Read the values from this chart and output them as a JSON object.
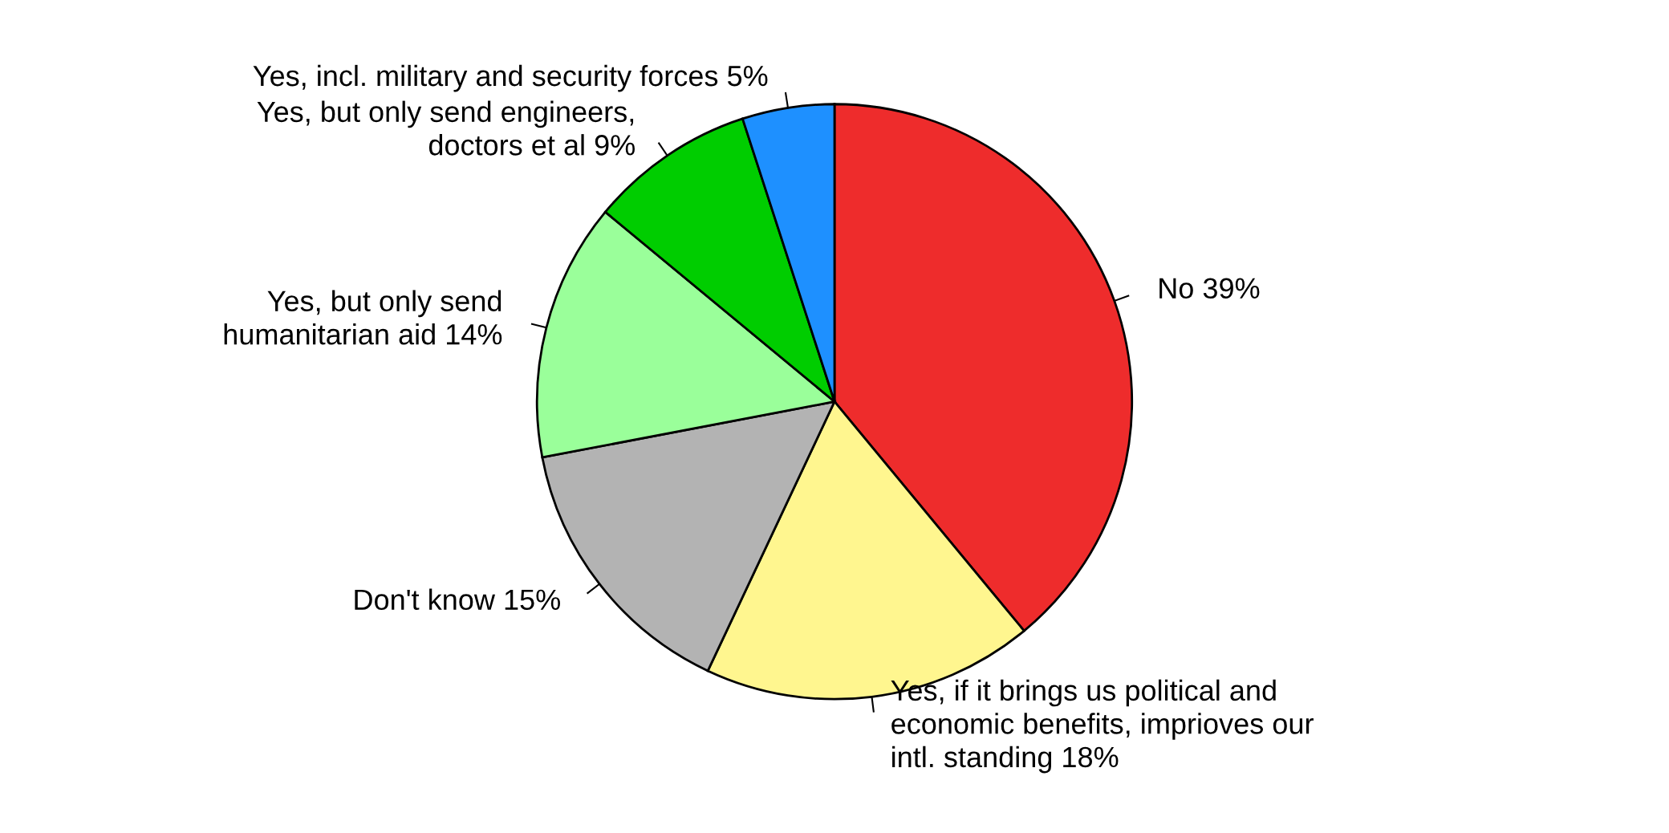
{
  "chart_data": {
    "type": "pie",
    "categories": [
      "No 39%",
      "Yes, if it brings us political and\neconomic benefits, imprioves our\nintl. standing 18%",
      "Don't know 15%",
      "Yes, but only send\nhumanitarian aid 14%",
      "Yes, but only send engineers,\ndoctors et al 9%",
      "Yes, incl. military and security forces 5%"
    ],
    "values": [
      39,
      18,
      15,
      14,
      9,
      5
    ],
    "colors": [
      "#ee2c2c",
      "#fff68f",
      "#b3b3b3",
      "#9aff9a",
      "#00cd00",
      "#1e90ff"
    ]
  }
}
